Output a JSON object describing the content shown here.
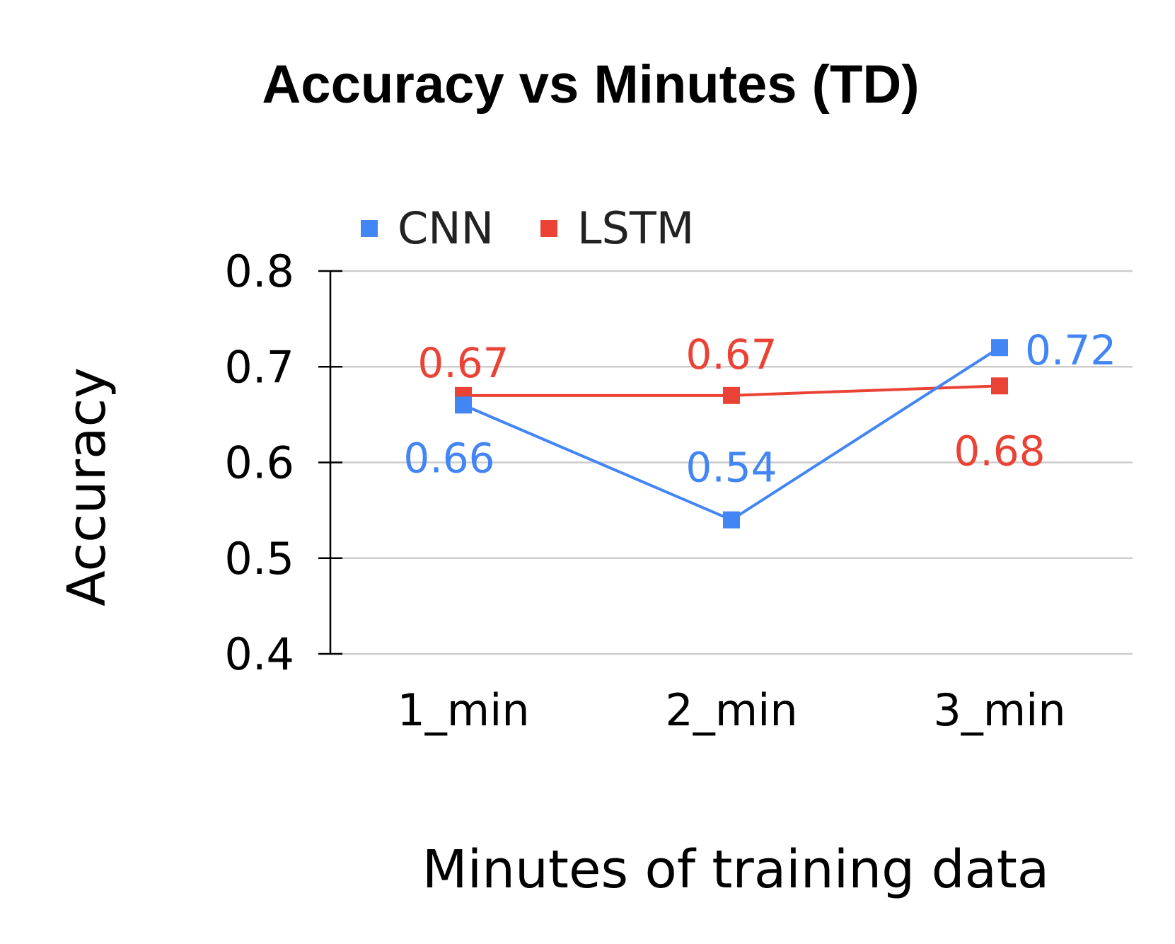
{
  "chart_data": {
    "type": "line",
    "title": "Accuracy vs Minutes (TD)",
    "xlabel": "Minutes of training data",
    "ylabel": "Accuracy",
    "categories": [
      "1_min",
      "2_min",
      "3_min"
    ],
    "ylim": [
      0.4,
      0.8
    ],
    "yticks": [
      "0.4",
      "0.5",
      "0.6",
      "0.7",
      "0.8"
    ],
    "grid": true,
    "legend_position": "top-left",
    "series": [
      {
        "name": "CNN",
        "color": "#4285F4",
        "values": [
          0.66,
          0.54,
          0.72
        ],
        "labels": [
          "0.66",
          "0.54",
          "0.72"
        ]
      },
      {
        "name": "LSTM",
        "color": "#EA4335",
        "values": [
          0.67,
          0.67,
          0.68
        ],
        "labels": [
          "0.67",
          "0.67",
          "0.68"
        ]
      }
    ]
  }
}
